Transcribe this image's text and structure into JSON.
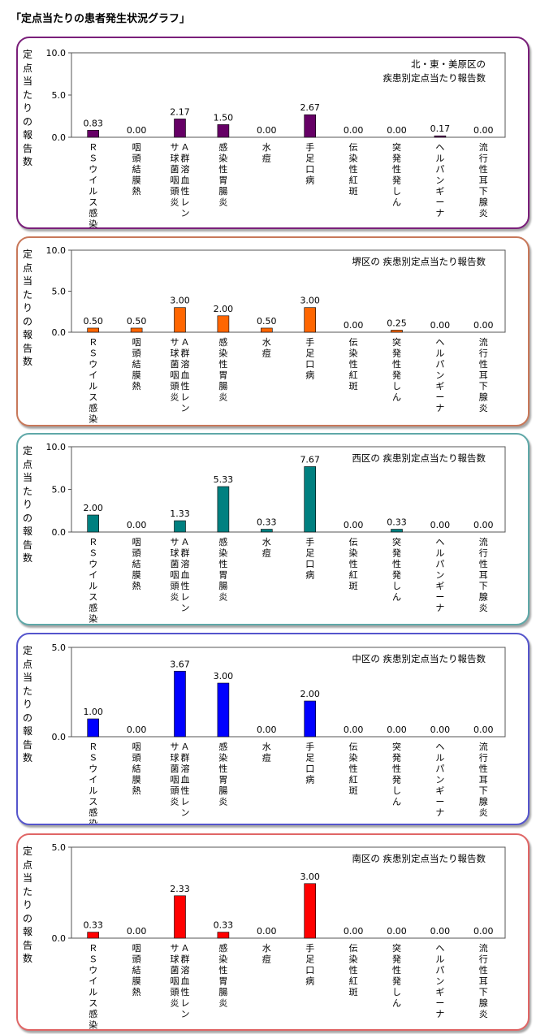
{
  "page": {
    "title": "「定点当たりの患者発生状況グラフ」"
  },
  "chart_data": [
    {
      "type": "bar",
      "title": "北・東・美原区の\n疾患別定点当たり報告数",
      "ylabel": "定点当たりの報告数",
      "ylim": [
        0,
        10
      ],
      "yticks": [
        "0.0",
        "5.0",
        "10.0"
      ],
      "color": "#660066",
      "border_color": "#7a1f7a",
      "categories": [
        "ＲＳウイルス感染症",
        "咽頭結膜熱",
        "Ａ群溶血性レンサ球菌咽頭炎",
        "感染性胃腸炎",
        "水痘",
        "手足口病",
        "伝染性紅斑",
        "突発性発しん",
        "ヘルパンギーナ",
        "流行性耳下腺炎"
      ],
      "values": [
        0.83,
        0.0,
        2.17,
        1.5,
        0.0,
        2.67,
        0.0,
        0.0,
        0.17,
        0.0
      ],
      "value_labels": [
        "0.83",
        "0.00",
        "2.17",
        "1.50",
        "0.00",
        "2.67",
        "0.00",
        "0.00",
        "0.17",
        "0.00"
      ]
    },
    {
      "type": "bar",
      "title": "堺区の 疾患別定点当たり報告数",
      "ylabel": "定点当たりの報告数",
      "ylim": [
        0,
        10
      ],
      "yticks": [
        "0.0",
        "5.0",
        "10.0"
      ],
      "color": "#ff6600",
      "border_color": "#c8785a",
      "categories": [
        "ＲＳウイルス感染症",
        "咽頭結膜熱",
        "Ａ群溶血性レンサ球菌咽頭炎",
        "感染性胃腸炎",
        "水痘",
        "手足口病",
        "伝染性紅斑",
        "突発性発しん",
        "ヘルパンギーナ",
        "流行性耳下腺炎"
      ],
      "values": [
        0.5,
        0.5,
        3.0,
        2.0,
        0.5,
        3.0,
        0.0,
        0.25,
        0.0,
        0.0
      ],
      "value_labels": [
        "0.50",
        "0.50",
        "3.00",
        "2.00",
        "0.50",
        "3.00",
        "0.00",
        "0.25",
        "0.00",
        "0.00"
      ]
    },
    {
      "type": "bar",
      "title": "西区の 疾患別定点当たり報告数",
      "ylabel": "定点当たりの報告数",
      "ylim": [
        0,
        10
      ],
      "yticks": [
        "0.0",
        "5.0",
        "10.0"
      ],
      "color": "#008080",
      "border_color": "#5fa8a8",
      "categories": [
        "ＲＳウイルス感染症",
        "咽頭結膜熱",
        "Ａ群溶血性レンサ球菌咽頭炎",
        "感染性胃腸炎",
        "水痘",
        "手足口病",
        "伝染性紅斑",
        "突発性発しん",
        "ヘルパンギーナ",
        "流行性耳下腺炎"
      ],
      "values": [
        2.0,
        0.0,
        1.33,
        5.33,
        0.33,
        7.67,
        0.0,
        0.33,
        0.0,
        0.0
      ],
      "value_labels": [
        "2.00",
        "0.00",
        "1.33",
        "5.33",
        "0.33",
        "7.67",
        "0.00",
        "0.33",
        "0.00",
        "0.00"
      ]
    },
    {
      "type": "bar",
      "title": "中区の 疾患別定点当たり報告数",
      "ylabel": "定点当たりの報告数",
      "ylim": [
        0,
        5
      ],
      "yticks": [
        "0.0",
        "5.0"
      ],
      "color": "#0000ff",
      "border_color": "#5555cc",
      "categories": [
        "ＲＳウイルス感染症",
        "咽頭結膜熱",
        "Ａ群溶血性レンサ球菌咽頭炎",
        "感染性胃腸炎",
        "水痘",
        "手足口病",
        "伝染性紅斑",
        "突発性発しん",
        "ヘルパンギーナ",
        "流行性耳下腺炎"
      ],
      "values": [
        1.0,
        0.0,
        3.67,
        3.0,
        0.0,
        2.0,
        0.0,
        0.0,
        0.0,
        0.0
      ],
      "value_labels": [
        "1.00",
        "0.00",
        "3.67",
        "3.00",
        "0.00",
        "2.00",
        "0.00",
        "0.00",
        "0.00",
        "0.00"
      ]
    },
    {
      "type": "bar",
      "title": "南区の 疾患別定点当たり報告数",
      "ylabel": "定点当たりの報告数",
      "ylim": [
        0,
        5
      ],
      "yticks": [
        "0.0",
        "5.0"
      ],
      "color": "#ff0000",
      "border_color": "#e06666",
      "categories": [
        "ＲＳウイルス感染症",
        "咽頭結膜熱",
        "Ａ群溶血性レンサ球菌咽頭炎",
        "感染性胃腸炎",
        "水痘",
        "手足口病",
        "伝染性紅斑",
        "突発性発しん",
        "ヘルパンギーナ",
        "流行性耳下腺炎"
      ],
      "values": [
        0.33,
        0.0,
        2.33,
        0.33,
        0.0,
        3.0,
        0.0,
        0.0,
        0.0,
        0.0
      ],
      "value_labels": [
        "0.33",
        "0.00",
        "2.33",
        "0.33",
        "0.00",
        "3.00",
        "0.00",
        "0.00",
        "0.00",
        "0.00"
      ]
    }
  ]
}
